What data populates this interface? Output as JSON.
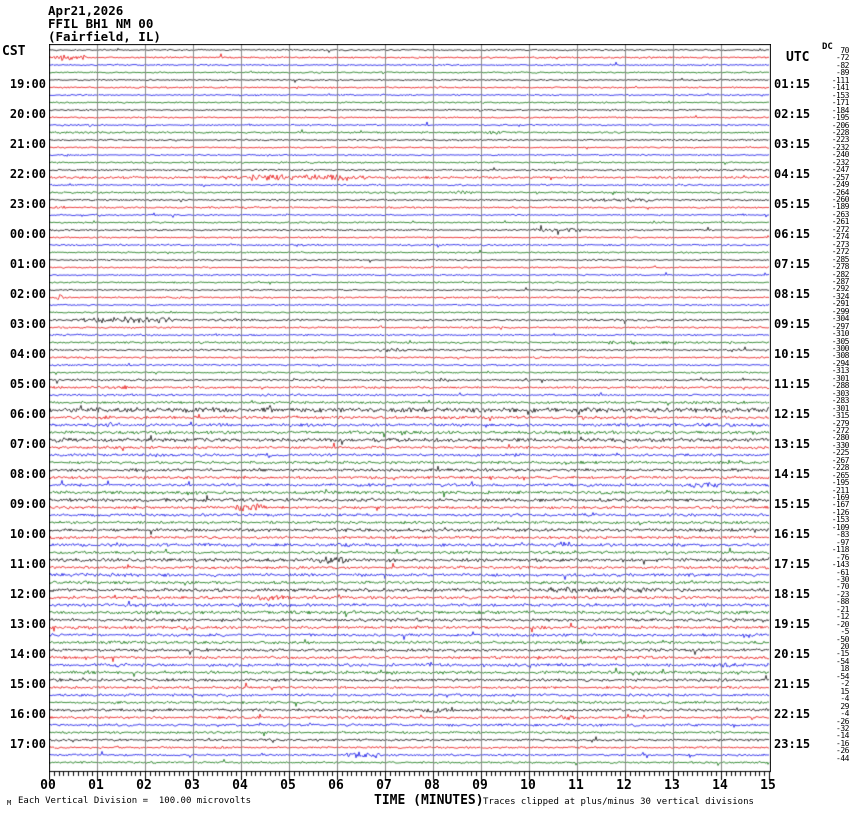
{
  "header": {
    "date": "Apr21,2026",
    "station": "FFIL BH1 NM 00",
    "location": "(Fairfield, IL)"
  },
  "axis": {
    "left_header": "CST",
    "right_header": "UTC",
    "dc_header": "DC",
    "x_title": "TIME (MINUTES)",
    "x_ticks": [
      "00",
      "01",
      "02",
      "03",
      "04",
      "05",
      "06",
      "07",
      "08",
      "09",
      "10",
      "11",
      "12",
      "13",
      "14",
      "15"
    ]
  },
  "footer": {
    "watermark": "M",
    "scale_note": "Each Vertical Division =  100.00 microvolts",
    "clip_note": "Traces clipped at plus/minus 30 vertical divisions"
  },
  "chart_data": {
    "type": "seismogram-helicorder",
    "title": "FFIL BH1 NM 00 (Fairfield, IL) Apr21,2026",
    "x_range_minutes": [
      0,
      15
    ],
    "minutes_per_trace": 15,
    "traces_per_row": 4,
    "trace_colors": [
      "#000000",
      "#e60000",
      "#0000e6",
      "#006e00"
    ],
    "grid_color": "#8a8a8a",
    "clip_divisions": 30,
    "microvolts_per_division": 100.0,
    "rows": [
      {
        "cst": "",
        "utc": "",
        "noise": [
          0.6,
          0.7,
          0.6,
          0.6
        ]
      },
      {
        "cst": "19:00",
        "utc": "01:15",
        "noise": [
          0.6,
          0.6,
          0.6,
          0.6
        ]
      },
      {
        "cst": "20:00",
        "utc": "02:15",
        "noise": [
          0.6,
          0.6,
          0.6,
          0.7
        ]
      },
      {
        "cst": "21:00",
        "utc": "03:15",
        "noise": [
          0.6,
          0.6,
          0.6,
          0.6
        ]
      },
      {
        "cst": "22:00",
        "utc": "04:15",
        "noise": [
          0.7,
          0.9,
          0.7,
          0.7
        ]
      },
      {
        "cst": "23:00",
        "utc": "05:15",
        "noise": [
          0.7,
          0.7,
          0.6,
          0.6
        ]
      },
      {
        "cst": "00:00",
        "utc": "06:15",
        "noise": [
          0.7,
          0.6,
          0.7,
          0.6
        ]
      },
      {
        "cst": "01:00",
        "utc": "07:15",
        "noise": [
          0.6,
          0.6,
          0.6,
          0.6
        ]
      },
      {
        "cst": "02:00",
        "utc": "08:15",
        "noise": [
          0.6,
          0.7,
          0.6,
          0.6
        ]
      },
      {
        "cst": "03:00",
        "utc": "09:15",
        "noise": [
          0.8,
          0.7,
          0.7,
          0.8
        ]
      },
      {
        "cst": "04:00",
        "utc": "10:15",
        "noise": [
          0.7,
          0.7,
          0.7,
          0.7
        ]
      },
      {
        "cst": "05:00",
        "utc": "11:15",
        "noise": [
          0.8,
          0.9,
          0.8,
          0.9
        ]
      },
      {
        "cst": "06:00",
        "utc": "12:15",
        "noise": [
          1.8,
          1.2,
          1.2,
          1.3
        ]
      },
      {
        "cst": "07:00",
        "utc": "13:15",
        "noise": [
          1.4,
          1.1,
          1.1,
          1.1
        ]
      },
      {
        "cst": "08:00",
        "utc": "14:15",
        "noise": [
          1.2,
          1.1,
          1.1,
          1.2
        ]
      },
      {
        "cst": "09:00",
        "utc": "15:15",
        "noise": [
          1.3,
          1.1,
          1.1,
          1.1
        ]
      },
      {
        "cst": "10:00",
        "utc": "16:15",
        "noise": [
          1.2,
          1.1,
          1.2,
          1.1
        ]
      },
      {
        "cst": "11:00",
        "utc": "17:15",
        "noise": [
          1.3,
          1.1,
          1.2,
          1.1
        ]
      },
      {
        "cst": "12:00",
        "utc": "18:15",
        "noise": [
          1.3,
          1.2,
          1.2,
          1.3
        ]
      },
      {
        "cst": "13:00",
        "utc": "19:15",
        "noise": [
          1.2,
          1.2,
          1.1,
          1.1
        ]
      },
      {
        "cst": "14:00",
        "utc": "20:15",
        "noise": [
          1.1,
          1.1,
          1.2,
          1.2
        ]
      },
      {
        "cst": "15:00",
        "utc": "21:15",
        "noise": [
          1.1,
          1.0,
          1.0,
          1.0
        ]
      },
      {
        "cst": "16:00",
        "utc": "22:15",
        "noise": [
          1.1,
          1.0,
          1.0,
          0.9
        ]
      },
      {
        "cst": "17:00",
        "utc": "23:15",
        "noise": [
          0.9,
          0.8,
          0.8,
          0.8
        ]
      }
    ],
    "dc_offsets": [
      70,
      -72,
      -82,
      -89,
      -111,
      -141,
      -153,
      -171,
      -184,
      -195,
      -206,
      -228,
      -223,
      -232,
      -240,
      -232,
      -247,
      -257,
      -249,
      -264,
      -260,
      -189,
      -263,
      -261,
      -272,
      -274,
      -273,
      -272,
      -285,
      -278,
      -282,
      -287,
      -292,
      -324,
      -291,
      -299,
      -304,
      -297,
      -310,
      -305,
      -300,
      -308,
      -294,
      -313,
      -301,
      -288,
      -303,
      -283,
      -301,
      -315,
      -279,
      -272,
      -280,
      -330,
      -225,
      -267,
      -228,
      -265,
      -195,
      -211,
      -169,
      -167,
      -126,
      -153,
      -109,
      -83,
      -97,
      -118,
      -76,
      -143,
      -61,
      -30,
      -70,
      -23,
      -88,
      -21,
      -12,
      -20,
      -5,
      -50,
      20,
      -15,
      -54,
      18,
      -54,
      -2,
      15,
      -4,
      29,
      -4,
      -26,
      -32,
      -14,
      -16,
      -26,
      -44
    ],
    "events": [
      {
        "row": 0,
        "trace": 1,
        "start": 0,
        "end": 0.9,
        "amp": 2.2
      },
      {
        "row": 2,
        "trace": 3,
        "start": 9.0,
        "end": 9.6,
        "amp": 1.4
      },
      {
        "row": 3,
        "trace": 2,
        "start": 0.2,
        "end": 0.5,
        "amp": 1.6
      },
      {
        "row": 4,
        "trace": 1,
        "start": 0,
        "end": 3.3,
        "amp": 1.0
      },
      {
        "row": 4,
        "trace": 1,
        "start": 3.3,
        "end": 7.0,
        "amp": 2.6
      },
      {
        "row": 4,
        "trace": 3,
        "start": 8.3,
        "end": 8.9,
        "amp": 1.3
      },
      {
        "row": 4,
        "trace": 0,
        "start": 12.9,
        "end": 14.6,
        "amp": 0.9
      },
      {
        "row": 5,
        "trace": 0,
        "start": 10.8,
        "end": 13.2,
        "amp": 1.4
      },
      {
        "row": 5,
        "trace": 1,
        "start": 0,
        "end": 0.4,
        "amp": 1.8
      },
      {
        "row": 6,
        "trace": 0,
        "start": 9.9,
        "end": 11.4,
        "amp": 1.5
      },
      {
        "row": 6,
        "trace": 2,
        "start": 4.8,
        "end": 5.4,
        "amp": 1.2
      },
      {
        "row": 8,
        "trace": 1,
        "start": 0.1,
        "end": 0.4,
        "amp": 2.2
      },
      {
        "row": 9,
        "trace": 0,
        "start": 0.3,
        "end": 3.0,
        "amp": 2.4
      },
      {
        "row": 9,
        "trace": 0,
        "start": 3.0,
        "end": 4.5,
        "amp": 1.0
      },
      {
        "row": 9,
        "trace": 3,
        "start": 9.5,
        "end": 15,
        "amp": 0.9
      },
      {
        "row": 9,
        "trace": 3,
        "start": 11.4,
        "end": 12.6,
        "amp": 1.4
      },
      {
        "row": 9,
        "trace": 1,
        "start": 4.5,
        "end": 4.9,
        "amp": 1.2
      },
      {
        "row": 10,
        "trace": 0,
        "start": 6.6,
        "end": 7.6,
        "amp": 1.4
      },
      {
        "row": 10,
        "trace": 1,
        "start": 0,
        "end": 2.0,
        "amp": 0.8
      },
      {
        "row": 11,
        "trace": 1,
        "start": 1.3,
        "end": 1.8,
        "amp": 2.0
      },
      {
        "row": 11,
        "trace": 0,
        "start": 8.0,
        "end": 8.5,
        "amp": 1.5
      },
      {
        "row": 11,
        "trace": 3,
        "start": 12.5,
        "end": 15,
        "amp": 1.2
      },
      {
        "row": 11,
        "trace": 2,
        "start": 3.5,
        "end": 5.0,
        "amp": 1.0
      },
      {
        "row": 12,
        "trace": 2,
        "start": 1.1,
        "end": 1.6,
        "amp": 2.0
      },
      {
        "row": 12,
        "trace": 2,
        "start": 13.3,
        "end": 14.2,
        "amp": 1.6
      },
      {
        "row": 12,
        "trace": 3,
        "start": 14.5,
        "end": 15,
        "amp": 1.6
      },
      {
        "row": 13,
        "trace": 0,
        "start": 0,
        "end": 0.9,
        "amp": 2.2
      },
      {
        "row": 13,
        "trace": 2,
        "start": 4.4,
        "end": 4.9,
        "amp": 2.0
      },
      {
        "row": 13,
        "trace": 0,
        "start": 11.9,
        "end": 13.1,
        "amp": 1.4
      },
      {
        "row": 13,
        "trace": 3,
        "start": 10.4,
        "end": 10.8,
        "amp": 1.4
      },
      {
        "row": 14,
        "trace": 3,
        "start": 2.7,
        "end": 3.4,
        "amp": 1.8
      },
      {
        "row": 14,
        "trace": 2,
        "start": 13.2,
        "end": 14.1,
        "amp": 2.0
      },
      {
        "row": 14,
        "trace": 1,
        "start": 2.5,
        "end": 4.0,
        "amp": 1.0
      },
      {
        "row": 15,
        "trace": 1,
        "start": 3.7,
        "end": 4.6,
        "amp": 3.2
      },
      {
        "row": 15,
        "trace": 0,
        "start": 3.5,
        "end": 5.5,
        "amp": 1.4
      },
      {
        "row": 15,
        "trace": 2,
        "start": 7.7,
        "end": 8.0,
        "amp": 1.3
      },
      {
        "row": 16,
        "trace": 2,
        "start": 5.9,
        "end": 6.5,
        "amp": 1.6
      },
      {
        "row": 16,
        "trace": 0,
        "start": 11.3,
        "end": 11.7,
        "amp": 1.3
      },
      {
        "row": 16,
        "trace": 1,
        "start": 13.0,
        "end": 15,
        "amp": 1.0
      },
      {
        "row": 17,
        "trace": 0,
        "start": 5.4,
        "end": 6.4,
        "amp": 2.8
      },
      {
        "row": 17,
        "trace": 0,
        "start": 6.4,
        "end": 7.3,
        "amp": 1.4
      },
      {
        "row": 17,
        "trace": 2,
        "start": 0,
        "end": 1.9,
        "amp": 1.5
      },
      {
        "row": 17,
        "trace": 3,
        "start": 9.4,
        "end": 10.6,
        "amp": 1.3
      },
      {
        "row": 17,
        "trace": 3,
        "start": 12.8,
        "end": 13.4,
        "amp": 1.4
      },
      {
        "row": 18,
        "trace": 0,
        "start": 9.8,
        "end": 13.1,
        "amp": 2.0
      },
      {
        "row": 18,
        "trace": 1,
        "start": 4.1,
        "end": 5.2,
        "amp": 2.0
      },
      {
        "row": 18,
        "trace": 1,
        "start": 5.4,
        "end": 5.9,
        "amp": 1.6
      },
      {
        "row": 18,
        "trace": 3,
        "start": 14.0,
        "end": 15,
        "amp": 1.5
      },
      {
        "row": 19,
        "trace": 1,
        "start": 2.6,
        "end": 3.2,
        "amp": 2.2
      },
      {
        "row": 19,
        "trace": 3,
        "start": 0,
        "end": 2.0,
        "amp": 1.2
      },
      {
        "row": 20,
        "trace": 2,
        "start": 13.7,
        "end": 14.5,
        "amp": 1.7
      },
      {
        "row": 20,
        "trace": 3,
        "start": 0.3,
        "end": 1.0,
        "amp": 1.5
      },
      {
        "row": 21,
        "trace": 1,
        "start": 2.0,
        "end": 2.4,
        "amp": 1.6
      },
      {
        "row": 22,
        "trace": 0,
        "start": 7.4,
        "end": 8.7,
        "amp": 2.0
      },
      {
        "row": 22,
        "trace": 1,
        "start": 10.4,
        "end": 11.1,
        "amp": 1.7
      },
      {
        "row": 23,
        "trace": 2,
        "start": 6.0,
        "end": 7.1,
        "amp": 2.4
      },
      {
        "row": 23,
        "trace": 1,
        "start": 1.3,
        "end": 1.6,
        "amp": 1.4
      }
    ]
  }
}
